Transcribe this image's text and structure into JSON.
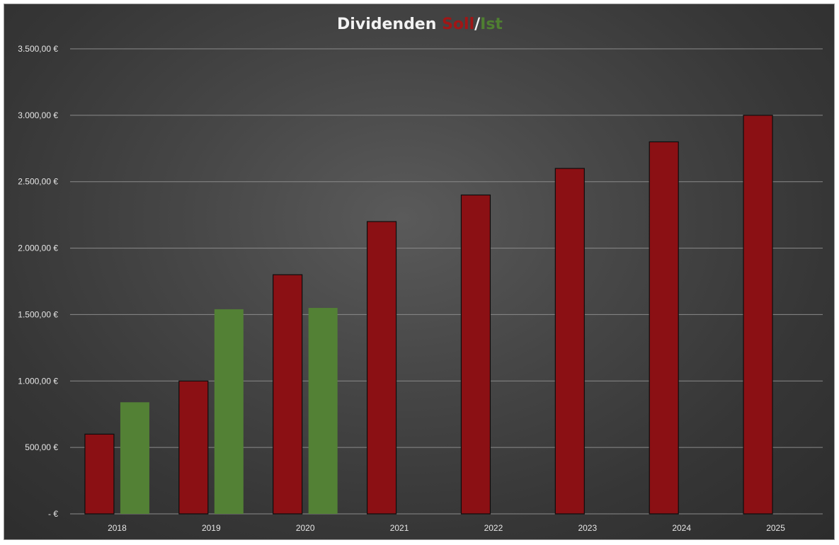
{
  "chart_data": {
    "type": "bar",
    "title_parts": [
      "Dividenden ",
      "Soll",
      "/",
      "Ist"
    ],
    "title_colors": [
      "#f2f2f2",
      "#a01616",
      "#f2f2f2",
      "#4f7f31"
    ],
    "categories": [
      "2018",
      "2019",
      "2020",
      "2021",
      "2022",
      "2023",
      "2024",
      "2025"
    ],
    "series": [
      {
        "name": "Soll",
        "color": "#8b1014",
        "values": [
          600,
          1000,
          1800,
          2200,
          2400,
          2600,
          2800,
          3000
        ]
      },
      {
        "name": "Ist",
        "color": "#538135",
        "values": [
          840,
          1540,
          1550,
          null,
          null,
          null,
          null,
          null
        ]
      }
    ],
    "ylim": [
      0,
      3500
    ],
    "ytick_values": [
      0,
      500,
      1000,
      1500,
      2000,
      2500,
      3000,
      3500
    ],
    "ytick_labels": [
      "-  €",
      "500,00 €",
      "1.000,00 €",
      "1.500,00 €",
      "2.000,00 €",
      "2.500,00 €",
      "3.000,00 €",
      "3.500,00 €"
    ],
    "grid": true,
    "legend": "none",
    "background": "#3d3d3d",
    "gridline_color": "#8a8a8a"
  }
}
